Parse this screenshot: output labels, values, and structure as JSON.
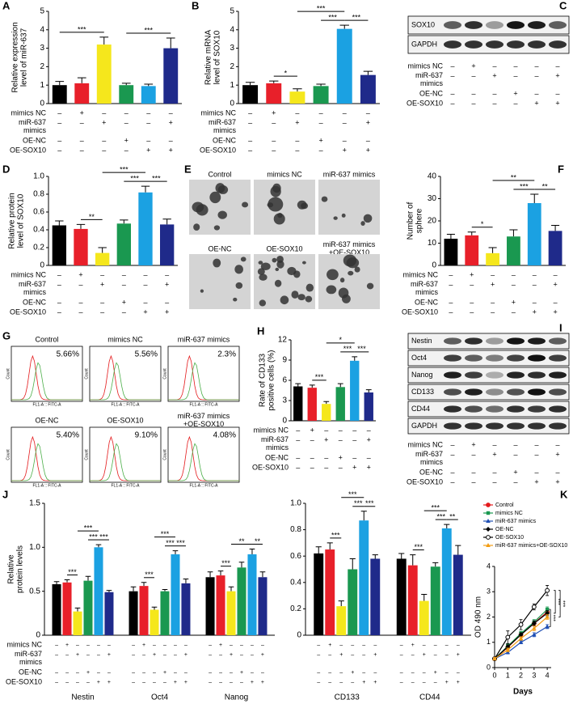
{
  "treatment": {
    "rows": [
      "mimics NC",
      "miR-637 mimics",
      "OE-NC",
      "OE-SOX10"
    ],
    "signs": [
      [
        "–",
        "+",
        "–",
        "–",
        "–",
        "–"
      ],
      [
        "–",
        "–",
        "+",
        "–",
        "–",
        "+"
      ],
      [
        "–",
        "–",
        "–",
        "+",
        "–",
        "–"
      ],
      [
        "–",
        "–",
        "–",
        "–",
        "+",
        "+"
      ]
    ]
  },
  "chart_data": [
    {
      "type": "bar",
      "panel": "A",
      "ylabel": "Relative expression level of miR-637",
      "values": [
        1.0,
        1.1,
        3.2,
        1.0,
        0.95,
        3.0
      ],
      "errors": [
        0.2,
        0.3,
        0.4,
        0.1,
        0.1,
        0.55
      ],
      "colors": [
        "#000000",
        "#e8202a",
        "#f5e71c",
        "#1a9850",
        "#1ba1e2",
        "#1f2a8a"
      ],
      "ylim": [
        0,
        5
      ],
      "yticks": [
        0,
        1,
        2,
        3,
        4,
        5
      ],
      "annotations": [
        {
          "text": "***",
          "from": 0,
          "to": 2
        },
        {
          "text": "***",
          "from": 3,
          "to": 5
        }
      ]
    },
    {
      "type": "bar",
      "panel": "B",
      "ylabel": "Relative mRNA level of SOX10",
      "values": [
        1.0,
        1.1,
        0.65,
        0.95,
        4.05,
        1.55
      ],
      "errors": [
        0.15,
        0.12,
        0.15,
        0.1,
        0.2,
        0.2
      ],
      "colors": [
        "#000000",
        "#e8202a",
        "#f5e71c",
        "#1a9850",
        "#1ba1e2",
        "#1f2a8a"
      ],
      "ylim": [
        0,
        5
      ],
      "yticks": [
        0,
        1,
        2,
        3,
        4,
        5
      ],
      "annotations": [
        {
          "text": "*",
          "from": 1,
          "to": 2
        },
        {
          "text": "***",
          "from": 3,
          "to": 4
        },
        {
          "text": "***",
          "from": 4,
          "to": 5
        },
        {
          "text": "***",
          "from": 2,
          "to": 4
        }
      ]
    },
    {
      "type": "bar",
      "panel": "D",
      "ylabel": "Relative protein level of SOX10",
      "values": [
        0.45,
        0.41,
        0.14,
        0.47,
        0.82,
        0.46
      ],
      "errors": [
        0.05,
        0.05,
        0.06,
        0.04,
        0.07,
        0.06
      ],
      "colors": [
        "#000000",
        "#e8202a",
        "#f5e71c",
        "#1a9850",
        "#1ba1e2",
        "#1f2a8a"
      ],
      "ylim": [
        0,
        1
      ],
      "yticks": [
        0,
        0.2,
        0.4,
        0.6,
        0.8,
        {
          "value": 1,
          "label": "1.0"
        }
      ],
      "annotations": [
        {
          "text": "**",
          "from": 1,
          "to": 2
        },
        {
          "text": "***",
          "from": 3,
          "to": 4
        },
        {
          "text": "***",
          "from": 4,
          "to": 5
        },
        {
          "text": "***",
          "from": 2,
          "to": 4
        }
      ]
    },
    {
      "type": "bar",
      "panel": "F",
      "ylabel": "Number of sphere",
      "values": [
        12,
        13.5,
        5.5,
        13,
        28,
        15.5
      ],
      "errors": [
        2,
        1.5,
        2.5,
        3,
        4,
        2.5
      ],
      "colors": [
        "#000000",
        "#e8202a",
        "#f5e71c",
        "#1a9850",
        "#1ba1e2",
        "#1f2a8a"
      ],
      "ylim": [
        0,
        40
      ],
      "yticks": [
        0,
        10,
        20,
        30,
        40
      ],
      "annotations": [
        {
          "text": "*",
          "from": 1,
          "to": 2
        },
        {
          "text": "***",
          "from": 3,
          "to": 4
        },
        {
          "text": "**",
          "from": 4,
          "to": 5
        },
        {
          "text": "**",
          "from": 2,
          "to": 4
        }
      ]
    },
    {
      "type": "bar",
      "panel": "H",
      "ylabel": "Rate of CD133 positive cells (%)",
      "values": [
        5.1,
        4.9,
        2.5,
        5.0,
        8.9,
        4.2
      ],
      "errors": [
        0.4,
        0.4,
        0.35,
        0.5,
        0.6,
        0.4
      ],
      "colors": [
        "#000000",
        "#e8202a",
        "#f5e71c",
        "#1a9850",
        "#1ba1e2",
        "#1f2a8a"
      ],
      "ylim": [
        0,
        12
      ],
      "yticks": [
        0,
        3,
        6,
        9,
        12
      ],
      "annotations": [
        {
          "text": "***",
          "from": 1,
          "to": 2
        },
        {
          "text": "***",
          "from": 3,
          "to": 4
        },
        {
          "text": "***",
          "from": 4,
          "to": 5
        },
        {
          "text": "*",
          "from": 2,
          "to": 4
        }
      ]
    },
    {
      "type": "grouped_bar",
      "panel": "J",
      "ylabel": "Relative protein levels",
      "categories": [
        "Nestin",
        "Oct4",
        "Nanog"
      ],
      "series": [
        {
          "color": "#000000",
          "values": [
            0.58,
            0.5,
            0.66
          ],
          "errors": [
            0.03,
            0.05,
            0.06
          ]
        },
        {
          "color": "#e8202a",
          "values": [
            0.6,
            0.56,
            0.68
          ],
          "errors": [
            0.03,
            0.04,
            0.05
          ]
        },
        {
          "color": "#f5e71c",
          "values": [
            0.27,
            0.29,
            0.5
          ],
          "errors": [
            0.04,
            0.03,
            0.05
          ]
        },
        {
          "color": "#1a9850",
          "values": [
            0.62,
            0.5,
            0.77
          ],
          "errors": [
            0.05,
            0.02,
            0.06
          ]
        },
        {
          "color": "#1ba1e2",
          "values": [
            1.0,
            0.92,
            0.92
          ],
          "errors": [
            0.03,
            0.04,
            0.06
          ]
        },
        {
          "color": "#1f2a8a",
          "values": [
            0.49,
            0.59,
            0.66
          ],
          "errors": [
            0.02,
            0.05,
            0.06
          ]
        }
      ],
      "ylim": [
        0,
        1.5
      ],
      "yticks": [
        0,
        0.5,
        {
          "value": 1,
          "label": "1.0"
        },
        1.5
      ],
      "annotations": [
        {
          "text": "***",
          "group": 0,
          "from": 1,
          "to": 2
        },
        {
          "text": "***",
          "group": 0,
          "from": 3,
          "to": 4
        },
        {
          "text": "***",
          "group": 0,
          "from": 4,
          "to": 5
        },
        {
          "text": "***",
          "group": 0,
          "from": 2,
          "to": 4
        },
        {
          "text": "***",
          "group": 1,
          "from": 1,
          "to": 2
        },
        {
          "text": "***",
          "group": 1,
          "from": 3,
          "to": 4
        },
        {
          "text": "***",
          "group": 1,
          "from": 4,
          "to": 5
        },
        {
          "text": "***",
          "group": 1,
          "from": 2,
          "to": 4
        },
        {
          "text": "***",
          "group": 2,
          "from": 1,
          "to": 2
        },
        {
          "text": "**",
          "group": 2,
          "from": 4,
          "to": 5
        },
        {
          "text": "**",
          "group": 2,
          "from": 2,
          "to": 4
        }
      ]
    },
    {
      "type": "grouped_bar",
      "categories": [
        "CD133",
        "CD44"
      ],
      "series": [
        {
          "color": "#000000",
          "values": [
            0.62,
            0.58
          ],
          "errors": [
            0.05,
            0.04
          ]
        },
        {
          "color": "#e8202a",
          "values": [
            0.65,
            0.53
          ],
          "errors": [
            0.05,
            0.08
          ]
        },
        {
          "color": "#f5e71c",
          "values": [
            0.22,
            0.26
          ],
          "errors": [
            0.04,
            0.05
          ]
        },
        {
          "color": "#1a9850",
          "values": [
            0.5,
            0.52
          ],
          "errors": [
            0.08,
            0.03
          ]
        },
        {
          "color": "#1ba1e2",
          "values": [
            0.87,
            0.81
          ],
          "errors": [
            0.07,
            0.03
          ]
        },
        {
          "color": "#1f2a8a",
          "values": [
            0.58,
            0.61
          ],
          "errors": [
            0.03,
            0.07
          ]
        }
      ],
      "ylim": [
        0,
        1
      ],
      "yticks": [
        0,
        0.2,
        0.4,
        0.6,
        0.8,
        {
          "value": 1,
          "label": "1.0"
        }
      ],
      "annotations": [
        {
          "text": "***",
          "group": 0,
          "from": 1,
          "to": 2
        },
        {
          "text": "***",
          "group": 0,
          "from": 3,
          "to": 4
        },
        {
          "text": "***",
          "group": 0,
          "from": 4,
          "to": 5
        },
        {
          "text": "***",
          "group": 0,
          "from": 2,
          "to": 4
        },
        {
          "text": "***",
          "group": 1,
          "from": 1,
          "to": 2
        },
        {
          "text": "***",
          "group": 1,
          "from": 3,
          "to": 4
        },
        {
          "text": "**",
          "group": 1,
          "from": 4,
          "to": 5
        },
        {
          "text": "***",
          "group": 1,
          "from": 2,
          "to": 4
        }
      ]
    },
    {
      "type": "line",
      "panel": "K",
      "xlabel": "Days",
      "ylabel": "OD 490 nm",
      "x": [
        0,
        1,
        2,
        3,
        4
      ],
      "xlim": [
        0,
        4.3
      ],
      "xticks": [
        0,
        1,
        2,
        3,
        4
      ],
      "ylim": [
        0,
        4
      ],
      "yticks": [
        0,
        1,
        2,
        3,
        4
      ],
      "series": [
        {
          "name": "Control",
          "color": "#e41a1c",
          "marker": "circle",
          "values": [
            0.35,
            0.8,
            1.3,
            1.75,
            2.2
          ],
          "errors": [
            0.05,
            0.08,
            0.08,
            0.1,
            0.1
          ]
        },
        {
          "name": "mimics NC",
          "color": "#1a9850",
          "marker": "square",
          "values": [
            0.35,
            0.85,
            1.35,
            1.8,
            2.3
          ],
          "errors": [
            0.05,
            0.08,
            0.08,
            0.1,
            0.1
          ]
        },
        {
          "name": "miR-637 mimics",
          "color": "#1f4fb4",
          "marker": "triangle",
          "values": [
            0.35,
            0.6,
            1.0,
            1.3,
            1.62
          ],
          "errors": [
            0.05,
            0.06,
            0.06,
            0.08,
            0.08
          ]
        },
        {
          "name": "OE-NC",
          "color": "#000000",
          "marker": "diamond",
          "values": [
            0.35,
            0.82,
            1.3,
            1.75,
            2.15
          ],
          "errors": [
            0.05,
            0.08,
            0.08,
            0.1,
            0.1
          ]
        },
        {
          "name": "OE-SOX10",
          "color": "#000000",
          "marker": "open-circle",
          "values": [
            0.35,
            1.2,
            1.7,
            2.4,
            3.05
          ],
          "errors": [
            0.05,
            0.25,
            0.2,
            0.12,
            0.2
          ]
        },
        {
          "name": "miR-637 mimics+OE-SOX10",
          "color": "#f39c12",
          "marker": "triangle",
          "values": [
            0.35,
            0.7,
            1.15,
            1.55,
            2.0
          ],
          "errors": [
            0.05,
            0.07,
            0.07,
            0.09,
            0.09
          ]
        }
      ],
      "annotations": [
        {
          "text": "***",
          "from": 1,
          "to": 2
        },
        {
          "text": "***",
          "from": 4,
          "to": 3
        },
        {
          "text": "***",
          "from": 4,
          "to": 5
        }
      ]
    }
  ],
  "blot_C": {
    "panel": "C",
    "rows": [
      "SOX10",
      "GAPDH"
    ]
  },
  "spheres_E": {
    "panel": "E",
    "labels": [
      "Control",
      "mimics NC",
      "miR-637 mimics",
      "OE-NC",
      "OE-SOX10",
      "miR-637 mimics +OE-SOX10"
    ]
  },
  "flow_G": {
    "panel": "G",
    "labels": [
      "Control",
      "mimics NC",
      "miR-637 mimics",
      "OE-NC",
      "OE-SOX10",
      "miR-637 mimics +OE-SOX10"
    ],
    "percents": [
      "5.66%",
      "5.56%",
      "2.3%",
      "5.40%",
      "9.10%",
      "4.08%"
    ],
    "ylabel": "Count",
    "xlabel": "FL1-A :: FITC-A"
  },
  "blot_I": {
    "panel": "I",
    "rows": [
      "Nestin",
      "Oct4",
      "Nanog",
      "CD133",
      "CD44",
      "GAPDH"
    ]
  }
}
